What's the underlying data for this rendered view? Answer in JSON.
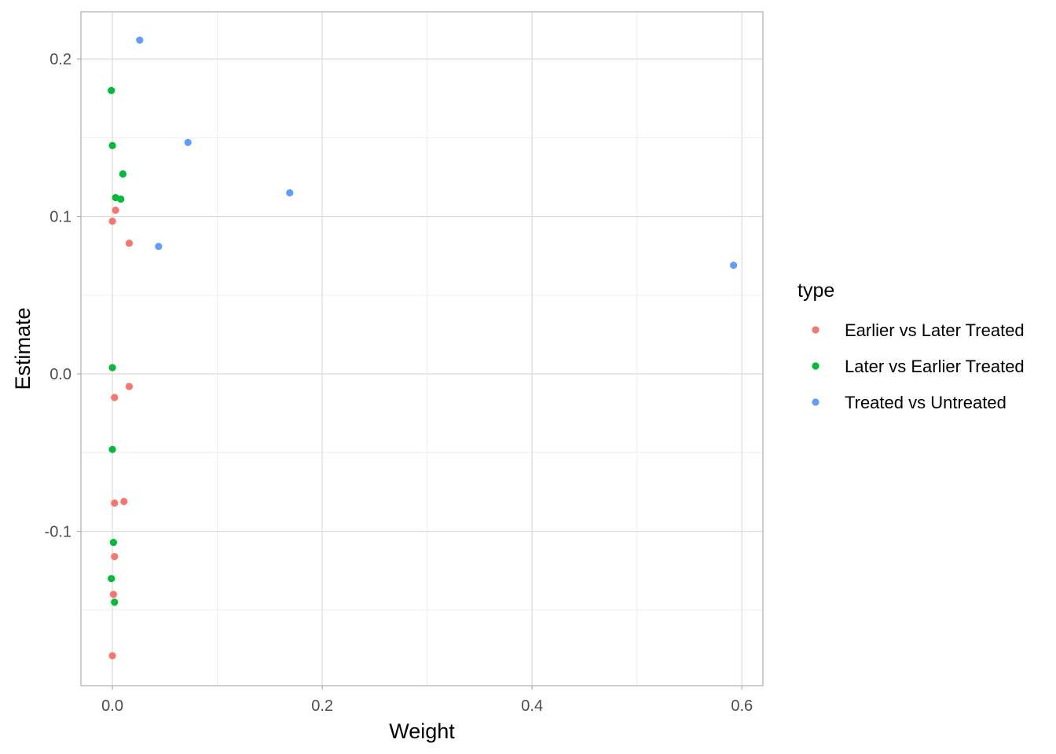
{
  "chart_data": {
    "type": "scatter",
    "title": "",
    "xlabel": "Weight",
    "ylabel": "Estimate",
    "xlim": [
      -0.03,
      0.62
    ],
    "ylim": [
      -0.198,
      0.23
    ],
    "xticks": [
      0.0,
      0.2,
      0.4,
      0.6
    ],
    "xtick_labels": [
      "0.0",
      "0.2",
      "0.4",
      "0.6"
    ],
    "yticks": [
      -0.1,
      0.0,
      0.1,
      0.2
    ],
    "ytick_labels": [
      "-0.1",
      "0.0",
      "0.1",
      "0.2"
    ],
    "grid": true,
    "legend": {
      "title": "type",
      "placement": "right"
    },
    "series": [
      {
        "name": "Earlier vs Later Treated",
        "color": "#F8766D",
        "points": [
          {
            "x": 0.003,
            "y": 0.104
          },
          {
            "x": 0.0,
            "y": 0.097
          },
          {
            "x": 0.016,
            "y": 0.083
          },
          {
            "x": 0.016,
            "y": -0.008
          },
          {
            "x": 0.002,
            "y": -0.015
          },
          {
            "x": 0.011,
            "y": -0.081
          },
          {
            "x": 0.002,
            "y": -0.082
          },
          {
            "x": 0.002,
            "y": -0.116
          },
          {
            "x": 0.001,
            "y": -0.14
          },
          {
            "x": 0.0,
            "y": -0.179
          }
        ]
      },
      {
        "name": "Later vs Earlier Treated",
        "color": "#00BA38",
        "points": [
          {
            "x": -0.001,
            "y": 0.18
          },
          {
            "x": 0.0,
            "y": 0.145
          },
          {
            "x": 0.01,
            "y": 0.127
          },
          {
            "x": 0.003,
            "y": 0.112
          },
          {
            "x": 0.008,
            "y": 0.111
          },
          {
            "x": 0.0,
            "y": 0.004
          },
          {
            "x": 0.0,
            "y": -0.048
          },
          {
            "x": 0.001,
            "y": -0.107
          },
          {
            "x": -0.001,
            "y": -0.13
          },
          {
            "x": 0.002,
            "y": -0.145
          }
        ]
      },
      {
        "name": "Treated vs Untreated",
        "color": "#619CFF",
        "points": [
          {
            "x": 0.026,
            "y": 0.212
          },
          {
            "x": 0.072,
            "y": 0.147
          },
          {
            "x": 0.169,
            "y": 0.115
          },
          {
            "x": 0.044,
            "y": 0.081
          },
          {
            "x": 0.592,
            "y": 0.069
          }
        ]
      }
    ]
  }
}
